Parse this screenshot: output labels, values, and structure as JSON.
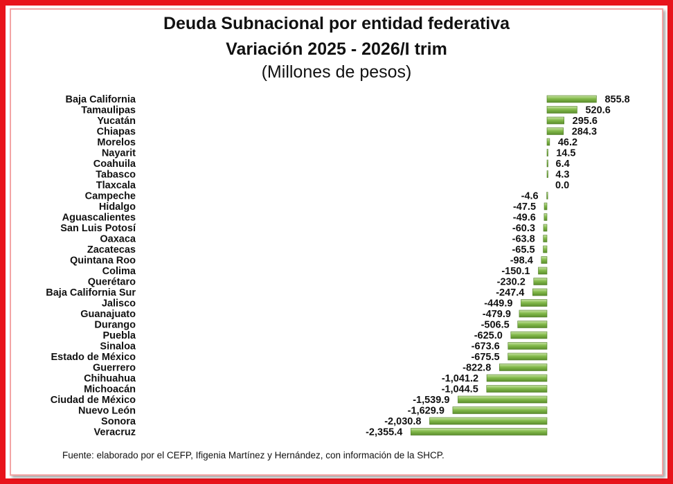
{
  "chart_data": {
    "type": "bar",
    "orientation": "horizontal",
    "title": "Deuda Subnacional por entidad federativa",
    "subtitle": "Variación 2025 - 2026/I trim",
    "unit_label": "(Millones de pesos)",
    "categories": [
      "Baja California",
      "Tamaulipas",
      "Yucatán",
      "Chiapas",
      "Morelos",
      "Nayarit",
      "Coahuila",
      "Tabasco",
      "Tlaxcala",
      "Campeche",
      "Hidalgo",
      "Aguascalientes",
      "San Luis Potosí",
      "Oaxaca",
      "Zacatecas",
      "Quintana Roo",
      "Colima",
      "Querétaro",
      "Baja California Sur",
      "Jalisco",
      "Guanajuato",
      "Durango",
      "Puebla",
      "Sinaloa",
      "Estado de México",
      "Guerrero",
      "Chihuahua",
      "Michoacán",
      "Ciudad de México",
      "Nuevo León",
      "Sonora",
      "Veracruz"
    ],
    "values": [
      855.8,
      520.6,
      295.6,
      284.3,
      46.2,
      14.5,
      6.4,
      4.3,
      0.0,
      -4.6,
      -47.5,
      -49.6,
      -60.3,
      -63.8,
      -65.5,
      -98.4,
      -150.1,
      -230.2,
      -247.4,
      -449.9,
      -479.9,
      -506.5,
      -625.0,
      -673.6,
      -675.5,
      -822.8,
      -1041.2,
      -1044.5,
      -1539.9,
      -1629.9,
      -2030.8,
      -2355.4
    ],
    "value_labels": [
      "855.8",
      "520.6",
      "295.6",
      "284.3",
      "46.2",
      "14.5",
      "6.4",
      "4.3",
      "0.0",
      "-4.6",
      "-47.5",
      "-49.6",
      "-60.3",
      "-63.8",
      "-65.5",
      "-98.4",
      "-150.1",
      "-230.2",
      "-247.4",
      "-449.9",
      "-479.9",
      "-506.5",
      "-625.0",
      "-673.6",
      "-675.5",
      "-822.8",
      "-1,041.2",
      "-1,044.5",
      "-1,539.9",
      "-1,629.9",
      "-2,030.8",
      "-2,355.4"
    ],
    "bar_color": "#76ad3f",
    "grid": false,
    "legend": "none"
  },
  "footer": {
    "source": "Fuente: elaborado por el CEFP, Ifigenia Martínez y Hernández, con información de la SHCP."
  },
  "colors": {
    "frame": "#e8141b",
    "bar": "#76ad3f"
  }
}
